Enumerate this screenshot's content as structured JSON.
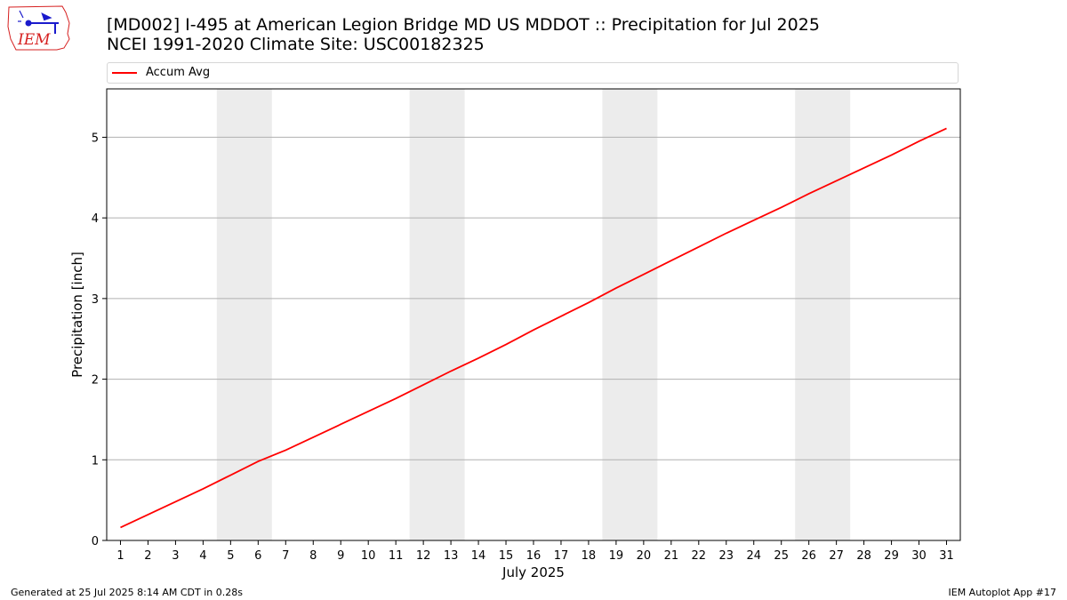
{
  "logo": {
    "text": "IEM"
  },
  "header": {
    "title_line1": "[MD002] I-495 at American Legion Bridge  MD US MDDOT :: Precipitation for Jul 2025",
    "title_line2": "NCEI 1991-2020 Climate Site: USC00182325"
  },
  "legend": {
    "label": "Accum Avg"
  },
  "footer": {
    "left": "Generated at 25 Jul 2025 8:14 AM CDT in 0.28s",
    "right": "IEM Autoplot App #17"
  },
  "colors": {
    "line": "#ff0000",
    "weekend_band": "#ececec",
    "grid": "#b0b0b0",
    "logo_accent": "#d62020",
    "logo_icon": "#1a1acc"
  },
  "chart_data": {
    "type": "line",
    "title": "[MD002] I-495 at American Legion Bridge  MD US MDDOT :: Precipitation for Jul 2025",
    "subtitle": "NCEI 1991-2020 Climate Site: USC00182325",
    "xlabel": "July 2025",
    "ylabel": "Precipitation [inch]",
    "x": [
      1,
      2,
      3,
      4,
      5,
      6,
      7,
      8,
      9,
      10,
      11,
      12,
      13,
      14,
      15,
      16,
      17,
      18,
      19,
      20,
      21,
      22,
      23,
      24,
      25,
      26,
      27,
      28,
      29,
      30,
      31
    ],
    "x_ticks": [
      "1",
      "2",
      "3",
      "4",
      "5",
      "6",
      "7",
      "8",
      "9",
      "10",
      "11",
      "12",
      "13",
      "14",
      "15",
      "16",
      "17",
      "18",
      "19",
      "20",
      "21",
      "22",
      "23",
      "24",
      "25",
      "26",
      "27",
      "28",
      "29",
      "30",
      "31"
    ],
    "xlim": [
      0.5,
      31.5
    ],
    "ylim": [
      0,
      5.6
    ],
    "y_ticks": [
      "0",
      "1",
      "2",
      "3",
      "4",
      "5"
    ],
    "grid": "horizontal",
    "legend_position": "top",
    "weekend_bands": [
      [
        4.5,
        6.5
      ],
      [
        11.5,
        13.5
      ],
      [
        18.5,
        20.5
      ],
      [
        25.5,
        27.5
      ]
    ],
    "series": [
      {
        "name": "Accum Avg",
        "values": [
          0.16,
          0.32,
          0.48,
          0.64,
          0.81,
          0.98,
          1.12,
          1.28,
          1.44,
          1.6,
          1.76,
          1.93,
          2.1,
          2.26,
          2.43,
          2.61,
          2.78,
          2.95,
          3.13,
          3.3,
          3.47,
          3.64,
          3.81,
          3.97,
          4.13,
          4.3,
          4.46,
          4.62,
          4.78,
          4.95,
          5.11
        ]
      }
    ]
  }
}
